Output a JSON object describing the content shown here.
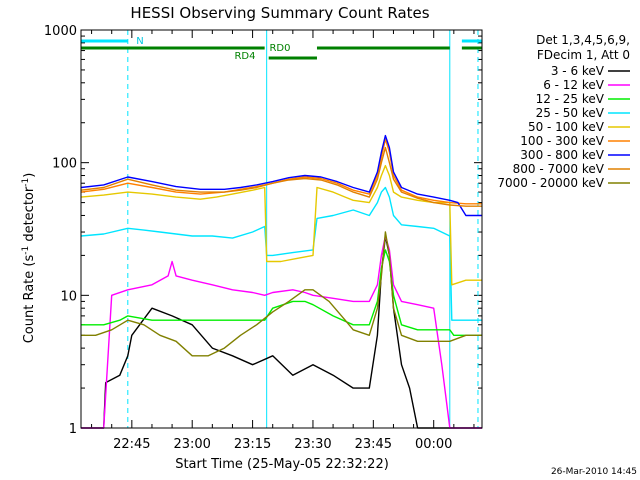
{
  "chart_data": {
    "type": "line",
    "title": "HESSI Observing Summary Count Rates",
    "xlabel": "Start Time (25-May-05 22:32:22)",
    "ylabel": "Count Rate (s⁻¹ detector⁻¹)",
    "ylabel_main": "Count Rate (s",
    "ylabel_sup1": "-1",
    "ylabel_mid": " detector",
    "ylabel_sup2": "-1",
    "ylabel_end": ")",
    "y_scale": "log",
    "ylim": [
      1,
      1000
    ],
    "xlim": [
      "22:32:22",
      "00:12:00"
    ],
    "x_ticks": [
      "22:45",
      "23:00",
      "23:15",
      "23:30",
      "23:45",
      "00:00"
    ],
    "x_tick_minutes": [
      45,
      60,
      75,
      90,
      105,
      120
    ],
    "x_range_minutes": [
      32.37,
      132
    ],
    "y_ticks": [
      "1",
      "10",
      "100",
      "1000"
    ],
    "y_tick_values": [
      1,
      10,
      100,
      1000
    ],
    "legend_header": [
      "Det 1,3,4,5,6,9,",
      "FDecim 1, Att 0"
    ],
    "footer_date": "26-Mar-2010 14:45",
    "flag_labels": [
      "N",
      "RD0",
      "RD4"
    ],
    "flag_bars": [
      {
        "label": "N",
        "color": "#00e5ff",
        "row": 1,
        "segments": [
          [
            32.37,
            44
          ],
          [
            127,
            132
          ]
        ]
      },
      {
        "label": "RD0",
        "color": "#008000",
        "row": 2,
        "segments": [
          [
            32.37,
            78
          ],
          [
            91,
            124
          ],
          [
            127,
            132
          ]
        ]
      },
      {
        "label": "RD4",
        "color": "#008000",
        "row": 3,
        "segments": [
          [
            79,
            91
          ]
        ]
      }
    ],
    "vlines": [
      {
        "x": 44,
        "style": "dashed",
        "color": "#00e5ff"
      },
      {
        "x": 78.5,
        "style": "solid",
        "color": "#00e5ff"
      },
      {
        "x": 124,
        "style": "solid",
        "color": "#00e5ff"
      },
      {
        "x": 131,
        "style": "dashed",
        "color": "#00e5ff"
      }
    ],
    "series": [
      {
        "name": "3 - 6 keV",
        "color": "#000000",
        "x": [
          32.37,
          38,
          38.5,
          42,
          44,
          45,
          50,
          55,
          60,
          65,
          70,
          75,
          80,
          85,
          90,
          95,
          100,
          104,
          106,
          107,
          108,
          109,
          110,
          112,
          114,
          116,
          118,
          120,
          125,
          130,
          132
        ],
        "y": [
          1,
          1,
          2.2,
          2.5,
          3.5,
          5,
          8,
          7,
          6,
          4,
          3.5,
          3,
          3.5,
          2.5,
          3,
          2.5,
          2,
          2,
          5,
          15,
          28,
          20,
          8,
          3,
          2,
          1,
          1,
          1,
          1,
          1,
          1
        ]
      },
      {
        "name": "6 - 12 keV",
        "color": "#ff00ff",
        "x": [
          32.37,
          36,
          38,
          40,
          44,
          50,
          54,
          55,
          56,
          60,
          65,
          70,
          75,
          78,
          80,
          85,
          88,
          90,
          95,
          100,
          104,
          106,
          107,
          108,
          109,
          110,
          112,
          116,
          120,
          122,
          124,
          126,
          128,
          132
        ],
        "y": [
          1,
          1,
          1,
          10,
          11,
          12,
          14,
          18,
          14,
          13,
          12,
          11,
          10.5,
          10,
          10.5,
          11,
          10.5,
          10,
          9.5,
          9,
          9,
          12,
          20,
          28,
          22,
          12,
          9,
          8.5,
          8,
          3,
          1,
          1,
          1,
          1
        ]
      },
      {
        "name": "12 - 25 keV",
        "color": "#00ee00",
        "x": [
          32.37,
          38,
          42,
          44,
          50,
          55,
          60,
          65,
          70,
          75,
          78,
          80,
          85,
          88,
          90,
          95,
          100,
          104,
          106,
          107,
          108,
          109,
          110,
          112,
          116,
          120,
          124,
          125,
          128,
          132
        ],
        "y": [
          6,
          6,
          6.5,
          7,
          6.5,
          6.5,
          6.5,
          6.5,
          6.5,
          6.5,
          6.5,
          8,
          9,
          9,
          8.5,
          7,
          6,
          6,
          9,
          16,
          22,
          18,
          10,
          6,
          5.5,
          5.5,
          5.5,
          5,
          5,
          5
        ]
      },
      {
        "name": "25 - 50 keV",
        "color": "#00e5ff",
        "x": [
          32.37,
          38,
          44,
          48,
          52,
          56,
          60,
          65,
          70,
          75,
          78,
          78.5,
          80,
          85,
          90,
          91,
          95,
          100,
          104,
          106,
          107,
          108,
          109,
          110,
          112,
          116,
          120,
          124,
          124.5,
          128,
          132
        ],
        "y": [
          28,
          29,
          32,
          31,
          30,
          29,
          28,
          28,
          27,
          30,
          33,
          20,
          20,
          21,
          22,
          38,
          40,
          44,
          40,
          50,
          60,
          65,
          55,
          40,
          34,
          33,
          32,
          28,
          6.5,
          6.5,
          6.5
        ]
      },
      {
        "name": "50 - 100 keV",
        "color": "#e6c800",
        "x": [
          32.37,
          38,
          44,
          50,
          56,
          62,
          66,
          70,
          75,
          78,
          78.5,
          82,
          86,
          90,
          91,
          95,
          98,
          100,
          104,
          106,
          107,
          108,
          109,
          110,
          112,
          116,
          120,
          124,
          124.5,
          128,
          132
        ],
        "y": [
          55,
          57,
          60,
          58,
          55,
          53,
          55,
          58,
          62,
          65,
          18,
          18,
          19,
          20,
          65,
          60,
          55,
          52,
          50,
          65,
          80,
          95,
          80,
          60,
          55,
          52,
          50,
          50,
          12,
          13,
          13
        ]
      },
      {
        "name": "100 - 300 keV",
        "color": "#ff8000",
        "x": [
          32.37,
          38,
          44,
          50,
          56,
          62,
          68,
          72,
          76,
          80,
          84,
          88,
          92,
          96,
          100,
          104,
          106,
          107,
          108,
          109,
          110,
          112,
          116,
          120,
          124,
          128,
          132
        ],
        "y": [
          60,
          63,
          70,
          65,
          60,
          58,
          60,
          63,
          66,
          70,
          75,
          78,
          76,
          70,
          62,
          58,
          80,
          110,
          150,
          120,
          80,
          62,
          55,
          52,
          50,
          49,
          49
        ]
      },
      {
        "name": "300 - 800 keV",
        "color": "#0000ff",
        "x": [
          32.37,
          38,
          44,
          50,
          56,
          62,
          68,
          72,
          76,
          80,
          84,
          88,
          92,
          96,
          100,
          104,
          106,
          107,
          108,
          109,
          110,
          112,
          116,
          120,
          124,
          126,
          128,
          132
        ],
        "y": [
          65,
          68,
          78,
          72,
          66,
          63,
          63,
          65,
          68,
          72,
          77,
          80,
          78,
          72,
          65,
          60,
          85,
          120,
          160,
          130,
          85,
          65,
          58,
          55,
          52,
          50,
          40,
          40
        ]
      },
      {
        "name": "800 - 7000 keV",
        "color": "#e08000",
        "x": [
          32.37,
          38,
          44,
          50,
          56,
          62,
          68,
          72,
          76,
          80,
          84,
          88,
          92,
          96,
          100,
          104,
          106,
          107,
          108,
          109,
          110,
          112,
          116,
          120,
          124,
          128,
          132
        ],
        "y": [
          62,
          65,
          75,
          68,
          62,
          60,
          60,
          62,
          65,
          70,
          74,
          76,
          74,
          68,
          60,
          55,
          75,
          100,
          130,
          100,
          75,
          60,
          54,
          50,
          48,
          47,
          47
        ]
      },
      {
        "name": "7000 - 20000 keV",
        "color": "#808000",
        "x": [
          32.37,
          36,
          40,
          44,
          48,
          52,
          56,
          60,
          64,
          68,
          72,
          76,
          80,
          84,
          88,
          90,
          94,
          98,
          100,
          104,
          106,
          107,
          108,
          109,
          110,
          112,
          116,
          120,
          124,
          128,
          132
        ],
        "y": [
          5,
          5,
          5.5,
          6.5,
          6,
          5,
          4.5,
          3.5,
          3.5,
          4,
          5,
          6,
          7.5,
          9,
          11,
          11,
          9,
          6.5,
          5.5,
          5,
          8,
          14,
          30,
          20,
          8,
          5,
          4.5,
          4.5,
          4.5,
          5,
          5
        ]
      }
    ]
  }
}
